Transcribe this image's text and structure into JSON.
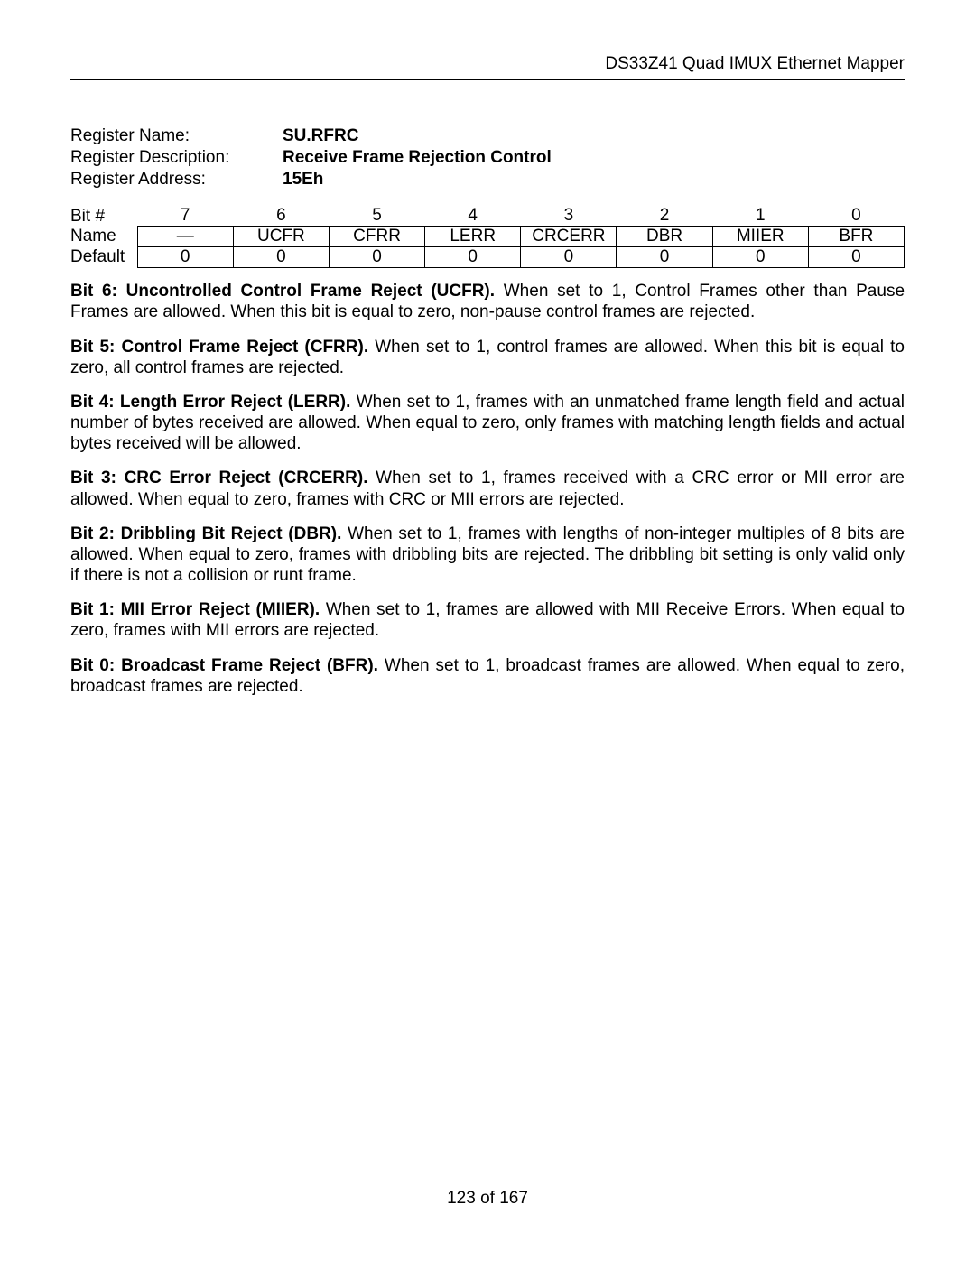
{
  "header": {
    "product": "DS33Z41 Quad IMUX Ethernet Mapper"
  },
  "register": {
    "name_label": "Register Name:",
    "name_value": "SU.RFRC",
    "desc_label": "Register Description:",
    "desc_value": "Receive Frame Rejection Control",
    "addr_label": "Register Address:",
    "addr_value": "15Eh"
  },
  "bit_table": {
    "bit_header": "Bit #",
    "name_header": "Name",
    "default_header": "Default",
    "bits": [
      "7",
      "6",
      "5",
      "4",
      "3",
      "2",
      "1",
      "0"
    ],
    "names": [
      "—",
      "UCFR",
      "CFRR",
      "LERR",
      "CRCERR",
      "DBR",
      "MIIER",
      "BFR"
    ],
    "defaults": [
      "0",
      "0",
      "0",
      "0",
      "0",
      "0",
      "0",
      "0"
    ]
  },
  "descriptions": [
    {
      "title": "Bit 6: Uncontrolled Control Frame Reject (UCFR).",
      "body": " When set to 1, Control Frames other than Pause Frames are allowed. When this bit is equal to zero, non-pause control frames are rejected."
    },
    {
      "title": "Bit 5: Control Frame Reject (CFRR).",
      "body": " When set to 1, control frames are allowed. When this bit is equal to zero, all control frames are rejected."
    },
    {
      "title": "Bit 4: Length Error Reject (LERR).",
      "body": " When set to 1, frames with an unmatched frame length field and actual number of bytes received are allowed. When equal to zero, only frames with matching length fields and actual bytes received will be allowed."
    },
    {
      "title": "Bit 3: CRC Error Reject (CRCERR).",
      "body": " When set to 1, frames received with a CRC error or MII error are allowed. When equal to zero, frames with CRC or MII errors are rejected."
    },
    {
      "title": "Bit 2: Dribbling Bit Reject (DBR).",
      "body": " When set to 1, frames with lengths of non-integer multiples of 8 bits are allowed. When equal to zero, frames with dribbling bits are rejected. The dribbling bit setting is only valid only if there is not a collision or runt frame."
    },
    {
      "title": "Bit 1: MII Error Reject (MIIER).",
      "body": " When set to 1, frames are allowed with MII Receive Errors. When equal to zero, frames with MII errors are rejected."
    },
    {
      "title": "Bit 0: Broadcast Frame Reject (BFR).",
      "body": " When set to 1, broadcast frames are allowed. When equal to zero, broadcast frames are rejected."
    }
  ],
  "footer": {
    "page": "123 of 167"
  }
}
